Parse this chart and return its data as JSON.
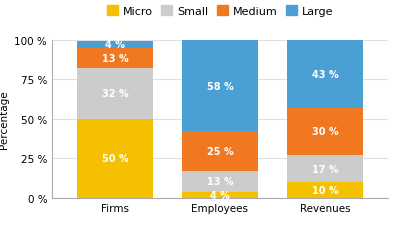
{
  "categories": [
    "Firms",
    "Employees",
    "Revenues"
  ],
  "segments": [
    "Micro",
    "Small",
    "Medium",
    "Large"
  ],
  "colors": [
    "#F5C000",
    "#CCCCCC",
    "#F07820",
    "#4A9FD4"
  ],
  "values": {
    "Micro": [
      50,
      4,
      10
    ],
    "Small": [
      32,
      13,
      17
    ],
    "Medium": [
      13,
      25,
      30
    ],
    "Large": [
      4,
      58,
      43
    ]
  },
  "labels": {
    "Micro": [
      "50 %",
      "4 %",
      "10 %"
    ],
    "Small": [
      "32 %",
      "13 %",
      "17 %"
    ],
    "Medium": [
      "13 %",
      "25 %",
      "30 %"
    ],
    "Large": [
      "4 %",
      "58 %",
      "43 %"
    ]
  },
  "ylabel": "Percentage",
  "yticks": [
    0,
    25,
    50,
    75,
    100
  ],
  "ytick_labels": [
    "0 %",
    "25 %",
    "50 %",
    "75 %",
    "100 %"
  ],
  "background_color": "#FFFFFF",
  "plot_bg_color": "#FFFFFF",
  "bar_width": 0.72,
  "label_fontsize": 7,
  "axis_fontsize": 7.5,
  "legend_fontsize": 8,
  "grid_color": "#E0E0E0",
  "spine_color": "#AAAAAA"
}
